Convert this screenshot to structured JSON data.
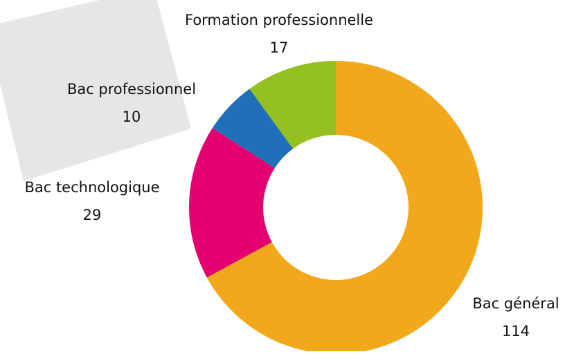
{
  "chart_data": {
    "type": "donut",
    "categories": [
      "Bac général",
      "Bac technologique",
      "Bac professionnel",
      "Formation professionnelle"
    ],
    "values": [
      114,
      29,
      10,
      17
    ],
    "colors": [
      "#f2a81b",
      "#e4006f",
      "#1f70b8",
      "#94c120"
    ]
  }
}
